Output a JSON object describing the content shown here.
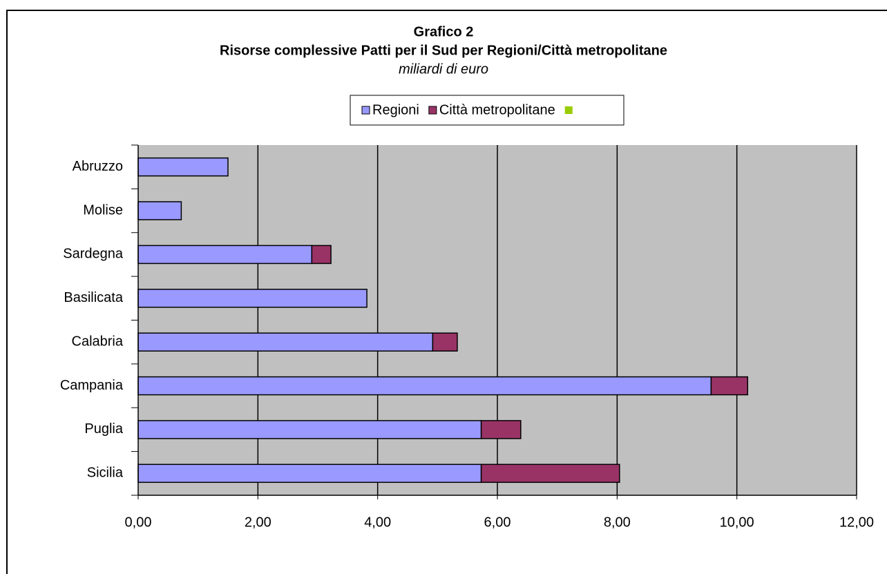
{
  "chart_data": {
    "type": "stacked_barh",
    "title": "Grafico 2",
    "subtitle": "Risorse complessive Patti per il Sud per Regioni/Città metropolitane",
    "units": "miliardi di euro",
    "categories": [
      "Abruzzo",
      "Molise",
      "Sardegna",
      "Basilicata",
      "Calabria",
      "Campania",
      "Puglia",
      "Sicilia"
    ],
    "series": [
      {
        "name": "Regioni",
        "color": "#9999ff",
        "values": [
          1.5,
          0.72,
          2.9,
          3.82,
          4.92,
          9.57,
          5.73,
          5.73
        ]
      },
      {
        "name": "Città metropolitane",
        "color": "#993366",
        "values": [
          0,
          0,
          0.32,
          0,
          0.41,
          0.61,
          0.66,
          2.31
        ]
      },
      {
        "color": "#99cc00",
        "values": [
          0,
          0,
          0,
          0,
          0,
          0,
          0,
          0
        ]
      }
    ],
    "xlim": [
      0,
      12
    ],
    "xticks": [
      {
        "value": 0,
        "label": "0,00"
      },
      {
        "value": 2,
        "label": "2,00"
      },
      {
        "value": 4,
        "label": "4,00"
      },
      {
        "value": 6,
        "label": "6,00"
      },
      {
        "value": 8,
        "label": "8,00"
      },
      {
        "value": 10,
        "label": "10,00"
      },
      {
        "value": 12,
        "label": "12,00"
      }
    ],
    "grid": true,
    "background": "#c0c0c0"
  }
}
